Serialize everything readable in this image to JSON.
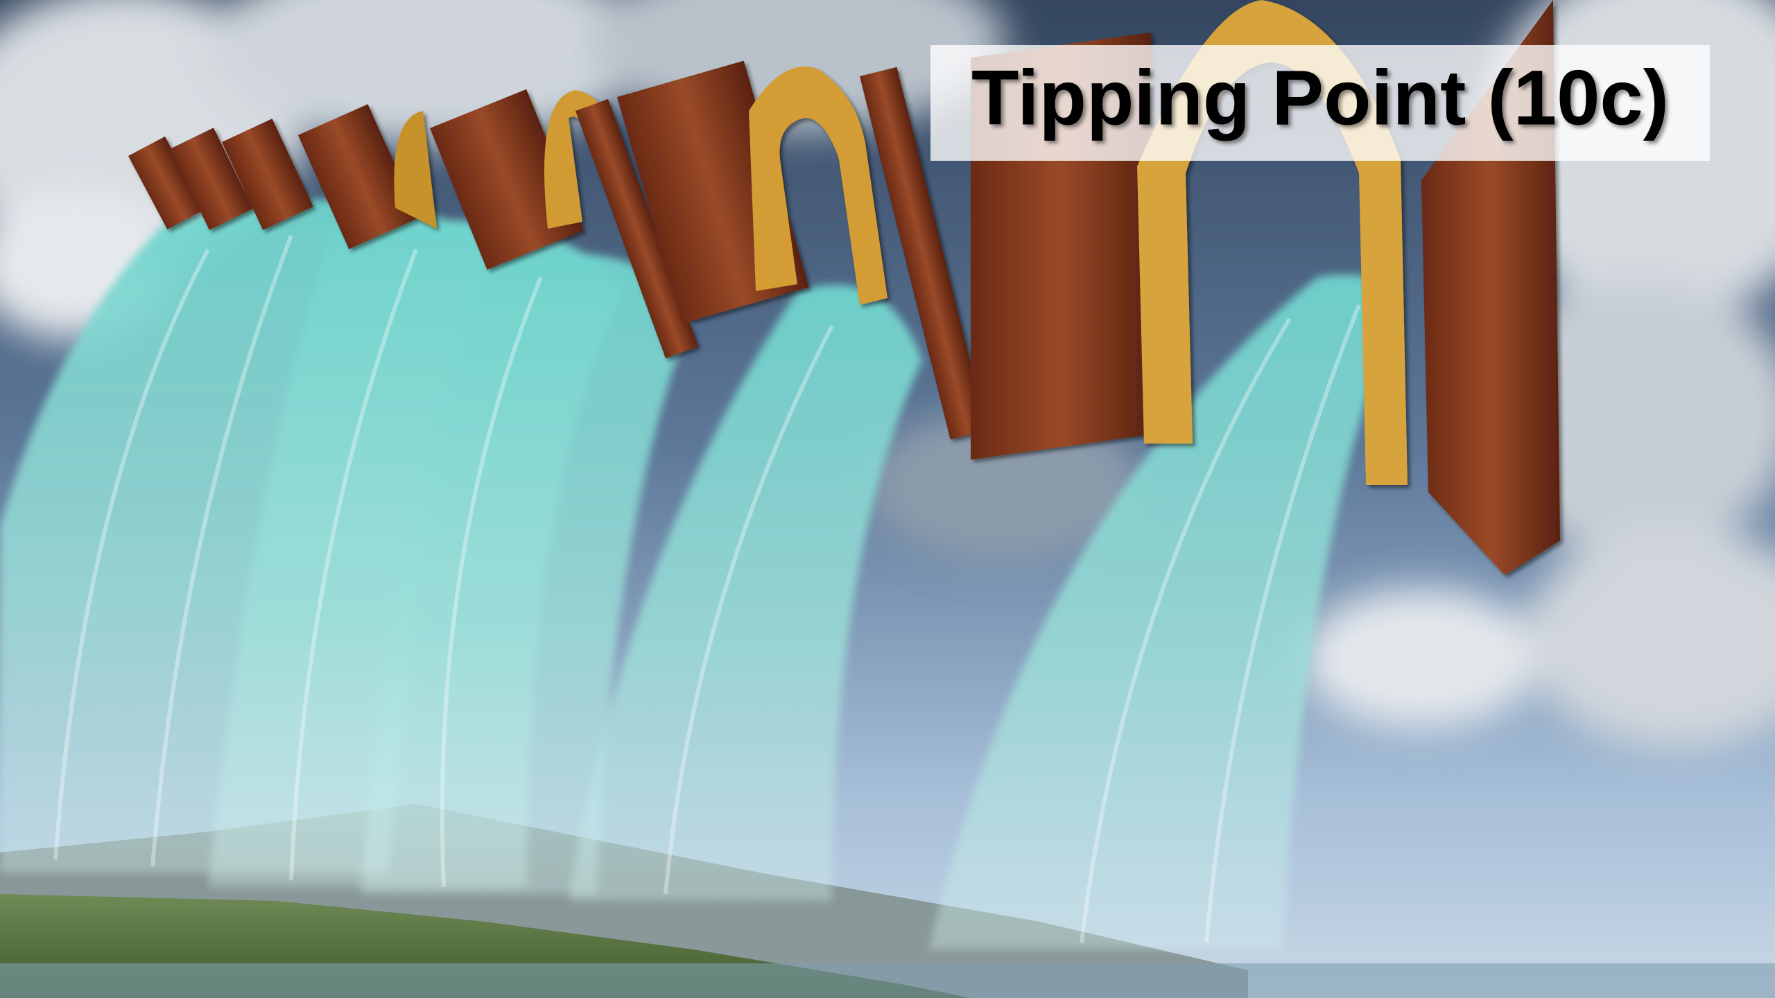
{
  "title": "Tipping Point (10c)"
}
